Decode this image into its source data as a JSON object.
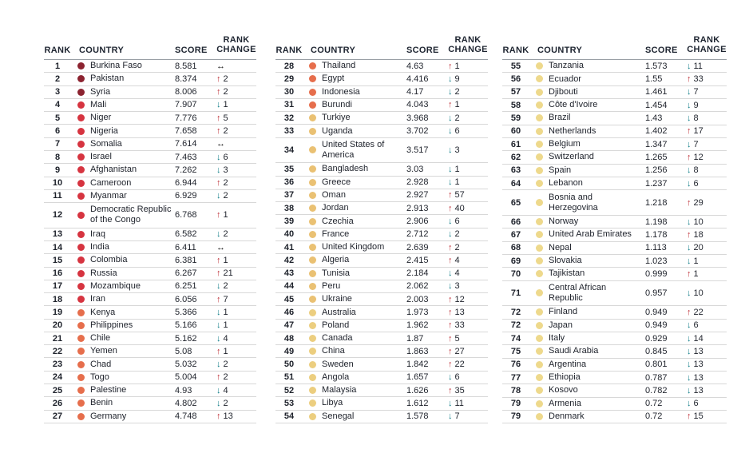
{
  "header": {
    "rank": "RANK",
    "country": "COUNTRY",
    "score": "SCORE",
    "rank_change_line1": "RANK",
    "rank_change_line2": "CHANGE"
  },
  "icons": {
    "up": "↑",
    "down": "↓",
    "same": "↔"
  },
  "colors": {
    "up": "#c0343c",
    "down": "#16808c",
    "same": "#191919",
    "text": "#1e222b",
    "row_line": "#d8d8d8",
    "header_line": "#9aa0a6",
    "background": "#ffffff",
    "dot_tiers": {
      "ranks_1_3": "#8c2330",
      "ranks_4_18": "#d63440",
      "ranks_19_31": "#e66e4c",
      "ranks_32_45": "#eac173",
      "ranks_46_54": "#ecce7f",
      "ranks_55_79": "#eed98c"
    }
  },
  "chart_data": {
    "type": "table",
    "columns": [
      "RANK",
      "COUNTRY",
      "SCORE",
      "RANK CHANGE"
    ],
    "panels": [
      [
        {
          "rank": "1",
          "country": "Burkina Faso",
          "score": "8.581",
          "dir": "same",
          "change": "",
          "dot": "#8c2330"
        },
        {
          "rank": "2",
          "country": "Pakistan",
          "score": "8.374",
          "dir": "up",
          "change": "2",
          "dot": "#8c2330"
        },
        {
          "rank": "3",
          "country": "Syria",
          "score": "8.006",
          "dir": "up",
          "change": "2",
          "dot": "#8c2330"
        },
        {
          "rank": "4",
          "country": "Mali",
          "score": "7.907",
          "dir": "down",
          "change": "1",
          "dot": "#d63440"
        },
        {
          "rank": "5",
          "country": "Niger",
          "score": "7.776",
          "dir": "up",
          "change": "5",
          "dot": "#d63440"
        },
        {
          "rank": "6",
          "country": "Nigeria",
          "score": "7.658",
          "dir": "up",
          "change": "2",
          "dot": "#d63440"
        },
        {
          "rank": "7",
          "country": "Somalia",
          "score": "7.614",
          "dir": "same",
          "change": "",
          "dot": "#d63440"
        },
        {
          "rank": "8",
          "country": "Israel",
          "score": "7.463",
          "dir": "down",
          "change": "6",
          "dot": "#d63440"
        },
        {
          "rank": "9",
          "country": "Afghanistan",
          "score": "7.262",
          "dir": "down",
          "change": "3",
          "dot": "#d63440"
        },
        {
          "rank": "10",
          "country": "Cameroon",
          "score": "6.944",
          "dir": "up",
          "change": "2",
          "dot": "#d63440"
        },
        {
          "rank": "11",
          "country": "Myanmar",
          "score": "6.929",
          "dir": "down",
          "change": "2",
          "dot": "#d63440"
        },
        {
          "rank": "12",
          "country": "Democratic Republic\nof the Congo",
          "score": "6.768",
          "dir": "up",
          "change": "1",
          "dot": "#d63440"
        },
        {
          "rank": "13",
          "country": "Iraq",
          "score": "6.582",
          "dir": "down",
          "change": "2",
          "dot": "#d63440"
        },
        {
          "rank": "14",
          "country": "India",
          "score": "6.411",
          "dir": "same",
          "change": "",
          "dot": "#d63440"
        },
        {
          "rank": "15",
          "country": "Colombia",
          "score": "6.381",
          "dir": "up",
          "change": "1",
          "dot": "#d63440"
        },
        {
          "rank": "16",
          "country": "Russia",
          "score": "6.267",
          "dir": "up",
          "change": "21",
          "dot": "#d63440"
        },
        {
          "rank": "17",
          "country": "Mozambique",
          "score": "6.251",
          "dir": "down",
          "change": "2",
          "dot": "#d63440"
        },
        {
          "rank": "18",
          "country": "Iran",
          "score": "6.056",
          "dir": "up",
          "change": "7",
          "dot": "#d63440"
        },
        {
          "rank": "19",
          "country": "Kenya",
          "score": "5.366",
          "dir": "down",
          "change": "1",
          "dot": "#e66e4c"
        },
        {
          "rank": "20",
          "country": "Philippines",
          "score": "5.166",
          "dir": "down",
          "change": "1",
          "dot": "#e66e4c"
        },
        {
          "rank": "21",
          "country": "Chile",
          "score": "5.162",
          "dir": "down",
          "change": "4",
          "dot": "#e66e4c"
        },
        {
          "rank": "22",
          "country": "Yemen",
          "score": "5.08",
          "dir": "up",
          "change": "1",
          "dot": "#e66e4c"
        },
        {
          "rank": "23",
          "country": "Chad",
          "score": "5.032",
          "dir": "down",
          "change": "2",
          "dot": "#e66e4c"
        },
        {
          "rank": "24",
          "country": "Togo",
          "score": "5.004",
          "dir": "up",
          "change": "2",
          "dot": "#e66e4c"
        },
        {
          "rank": "25",
          "country": "Palestine",
          "score": "4.93",
          "dir": "down",
          "change": "4",
          "dot": "#e66e4c"
        },
        {
          "rank": "26",
          "country": "Benin",
          "score": "4.802",
          "dir": "down",
          "change": "2",
          "dot": "#e66e4c"
        },
        {
          "rank": "27",
          "country": "Germany",
          "score": "4.748",
          "dir": "up",
          "change": "13",
          "dot": "#e66e4c"
        }
      ],
      [
        {
          "rank": "28",
          "country": "Thailand",
          "score": "4.63",
          "dir": "up",
          "change": "1",
          "dot": "#e66e4c"
        },
        {
          "rank": "29",
          "country": "Egypt",
          "score": "4.416",
          "dir": "down",
          "change": "9",
          "dot": "#e66e4c"
        },
        {
          "rank": "30",
          "country": "Indonesia",
          "score": "4.17",
          "dir": "down",
          "change": "2",
          "dot": "#e66e4c"
        },
        {
          "rank": "31",
          "country": "Burundi",
          "score": "4.043",
          "dir": "up",
          "change": "1",
          "dot": "#e66e4c"
        },
        {
          "rank": "32",
          "country": "Turkiye",
          "score": "3.968",
          "dir": "down",
          "change": "2",
          "dot": "#eac173"
        },
        {
          "rank": "33",
          "country": "Uganda",
          "score": "3.702",
          "dir": "down",
          "change": "6",
          "dot": "#eac173"
        },
        {
          "rank": "34",
          "country": "United States of\nAmerica",
          "score": "3.517",
          "dir": "down",
          "change": "3",
          "dot": "#eac173"
        },
        {
          "rank": "35",
          "country": "Bangladesh",
          "score": "3.03",
          "dir": "down",
          "change": "1",
          "dot": "#eac173"
        },
        {
          "rank": "36",
          "country": "Greece",
          "score": "2.928",
          "dir": "down",
          "change": "1",
          "dot": "#eac173"
        },
        {
          "rank": "37",
          "country": "Oman",
          "score": "2.927",
          "dir": "up",
          "change": "57",
          "dot": "#eac173"
        },
        {
          "rank": "38",
          "country": "Jordan",
          "score": "2.913",
          "dir": "up",
          "change": "40",
          "dot": "#eac173"
        },
        {
          "rank": "39",
          "country": "Czechia",
          "score": "2.906",
          "dir": "down",
          "change": "6",
          "dot": "#eac173"
        },
        {
          "rank": "40",
          "country": "France",
          "score": "2.712",
          "dir": "down",
          "change": "2",
          "dot": "#eac173"
        },
        {
          "rank": "41",
          "country": "United Kingdom",
          "score": "2.639",
          "dir": "up",
          "change": "2",
          "dot": "#eac173"
        },
        {
          "rank": "42",
          "country": "Algeria",
          "score": "2.415",
          "dir": "up",
          "change": "4",
          "dot": "#eac173"
        },
        {
          "rank": "43",
          "country": "Tunisia",
          "score": "2.184",
          "dir": "down",
          "change": "4",
          "dot": "#eac173"
        },
        {
          "rank": "44",
          "country": "Peru",
          "score": "2.062",
          "dir": "down",
          "change": "3",
          "dot": "#eac173"
        },
        {
          "rank": "45",
          "country": "Ukraine",
          "score": "2.003",
          "dir": "up",
          "change": "12",
          "dot": "#eac173"
        },
        {
          "rank": "46",
          "country": "Australia",
          "score": "1.973",
          "dir": "up",
          "change": "13",
          "dot": "#ecce7f"
        },
        {
          "rank": "47",
          "country": "Poland",
          "score": "1.962",
          "dir": "up",
          "change": "33",
          "dot": "#ecce7f"
        },
        {
          "rank": "48",
          "country": "Canada",
          "score": "1.87",
          "dir": "up",
          "change": "5",
          "dot": "#ecce7f"
        },
        {
          "rank": "49",
          "country": "China",
          "score": "1.863",
          "dir": "up",
          "change": "27",
          "dot": "#ecce7f"
        },
        {
          "rank": "50",
          "country": "Sweden",
          "score": "1.842",
          "dir": "up",
          "change": "22",
          "dot": "#ecce7f"
        },
        {
          "rank": "51",
          "country": "Angola",
          "score": "1.657",
          "dir": "down",
          "change": "6",
          "dot": "#ecce7f"
        },
        {
          "rank": "52",
          "country": "Malaysia",
          "score": "1.626",
          "dir": "up",
          "change": "35",
          "dot": "#ecce7f"
        },
        {
          "rank": "53",
          "country": "Libya",
          "score": "1.612",
          "dir": "down",
          "change": "11",
          "dot": "#ecce7f"
        },
        {
          "rank": "54",
          "country": "Senegal",
          "score": "1.578",
          "dir": "down",
          "change": "7",
          "dot": "#ecce7f"
        }
      ],
      [
        {
          "rank": "55",
          "country": "Tanzania",
          "score": "1.573",
          "dir": "down",
          "change": "11",
          "dot": "#eed98c"
        },
        {
          "rank": "56",
          "country": "Ecuador",
          "score": "1.55",
          "dir": "up",
          "change": "33",
          "dot": "#eed98c"
        },
        {
          "rank": "57",
          "country": "Djibouti",
          "score": "1.461",
          "dir": "down",
          "change": "7",
          "dot": "#eed98c"
        },
        {
          "rank": "58",
          "country": "Côte d'Ivoire",
          "score": "1.454",
          "dir": "down",
          "change": "9",
          "dot": "#eed98c"
        },
        {
          "rank": "59",
          "country": "Brazil",
          "score": "1.43",
          "dir": "down",
          "change": "8",
          "dot": "#eed98c"
        },
        {
          "rank": "60",
          "country": "Netherlands",
          "score": "1.402",
          "dir": "up",
          "change": "17",
          "dot": "#eed98c"
        },
        {
          "rank": "61",
          "country": "Belgium",
          "score": "1.347",
          "dir": "down",
          "change": "7",
          "dot": "#eed98c"
        },
        {
          "rank": "62",
          "country": "Switzerland",
          "score": "1.265",
          "dir": "up",
          "change": "12",
          "dot": "#eed98c"
        },
        {
          "rank": "63",
          "country": "Spain",
          "score": "1.256",
          "dir": "down",
          "change": "8",
          "dot": "#eed98c"
        },
        {
          "rank": "64",
          "country": "Lebanon",
          "score": "1.237",
          "dir": "down",
          "change": "6",
          "dot": "#eed98c"
        },
        {
          "rank": "65",
          "country": "Bosnia and\nHerzegovina",
          "score": "1.218",
          "dir": "up",
          "change": "29",
          "dot": "#eed98c"
        },
        {
          "rank": "66",
          "country": "Norway",
          "score": "1.198",
          "dir": "down",
          "change": "10",
          "dot": "#eed98c"
        },
        {
          "rank": "67",
          "country": "United Arab Emirates",
          "score": "1.178",
          "dir": "up",
          "change": "18",
          "dot": "#eed98c"
        },
        {
          "rank": "68",
          "country": "Nepal",
          "score": "1.113",
          "dir": "down",
          "change": "20",
          "dot": "#eed98c"
        },
        {
          "rank": "69",
          "country": "Slovakia",
          "score": "1.023",
          "dir": "down",
          "change": "1",
          "dot": "#eed98c"
        },
        {
          "rank": "70",
          "country": "Tajikistan",
          "score": "0.999",
          "dir": "up",
          "change": "1",
          "dot": "#eed98c"
        },
        {
          "rank": "71",
          "country": "Central African\nRepublic",
          "score": "0.957",
          "dir": "down",
          "change": "10",
          "dot": "#eed98c"
        },
        {
          "rank": "72",
          "country": "Finland",
          "score": "0.949",
          "dir": "up",
          "change": "22",
          "dot": "#eed98c"
        },
        {
          "rank": "72",
          "country": "Japan",
          "score": "0.949",
          "dir": "down",
          "change": "6",
          "dot": "#eed98c"
        },
        {
          "rank": "74",
          "country": "Italy",
          "score": "0.929",
          "dir": "down",
          "change": "14",
          "dot": "#eed98c"
        },
        {
          "rank": "75",
          "country": "Saudi Arabia",
          "score": "0.845",
          "dir": "down",
          "change": "13",
          "dot": "#eed98c"
        },
        {
          "rank": "76",
          "country": "Argentina",
          "score": "0.801",
          "dir": "down",
          "change": "13",
          "dot": "#eed98c"
        },
        {
          "rank": "77",
          "country": "Ethiopia",
          "score": "0.787",
          "dir": "down",
          "change": "13",
          "dot": "#eed98c"
        },
        {
          "rank": "78",
          "country": "Kosovo",
          "score": "0.782",
          "dir": "down",
          "change": "13",
          "dot": "#eed98c"
        },
        {
          "rank": "79",
          "country": "Armenia",
          "score": "0.72",
          "dir": "down",
          "change": "6",
          "dot": "#eed98c"
        },
        {
          "rank": "79",
          "country": "Denmark",
          "score": "0.72",
          "dir": "up",
          "change": "15",
          "dot": "#eed98c"
        }
      ]
    ]
  }
}
